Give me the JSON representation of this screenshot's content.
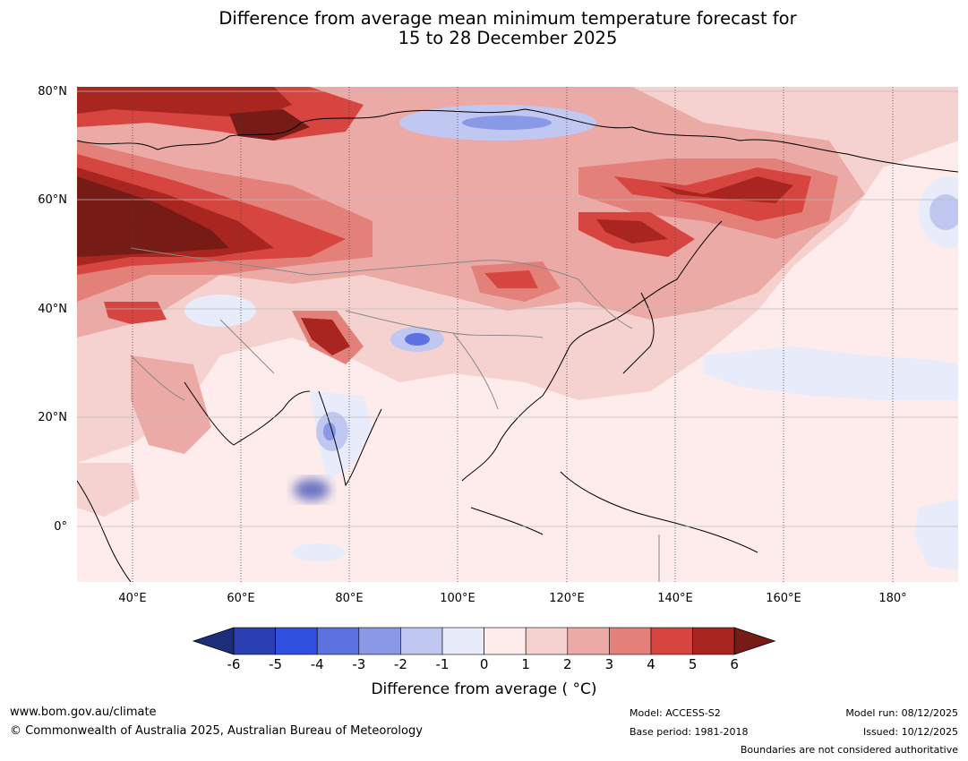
{
  "title_line1": "Difference from average mean minimum temperature forecast for",
  "title_line2": "15 to 28 December 2025",
  "map": {
    "latitude_labels": [
      "80°N",
      "60°N",
      "40°N",
      "20°N",
      "0°"
    ],
    "longitude_labels": [
      "40°E",
      "60°E",
      "80°E",
      "100°E",
      "120°E",
      "140°E",
      "160°E",
      "180°"
    ]
  },
  "colorbar": {
    "ticks": [
      "-6",
      "-5",
      "-4",
      "-3",
      "-2",
      "-1",
      "0",
      "1",
      "2",
      "3",
      "4",
      "5",
      "6"
    ],
    "colors": [
      "#1c2d7a",
      "#2a3fb2",
      "#3050e0",
      "#5b72e0",
      "#8a98e8",
      "#c0c8f2",
      "#e8ebfa",
      "#fdeceb",
      "#f5d2d0",
      "#ecaaa6",
      "#e4807a",
      "#d6453f",
      "#a8261f",
      "#761b16"
    ],
    "title": "Difference from average ( °C)"
  },
  "footer": {
    "website": "www.bom.gov.au/climate",
    "copyright": "© Commonwealth of Australia 2025, Australian Bureau of Meteorology",
    "model": "Model: ACCESS-S2",
    "base_period": "Base period: 1981-2018",
    "model_run": "Model run: 08/12/2025",
    "issued": "Issued: 10/12/2025",
    "boundaries": "Boundaries are not considered authoritative"
  }
}
